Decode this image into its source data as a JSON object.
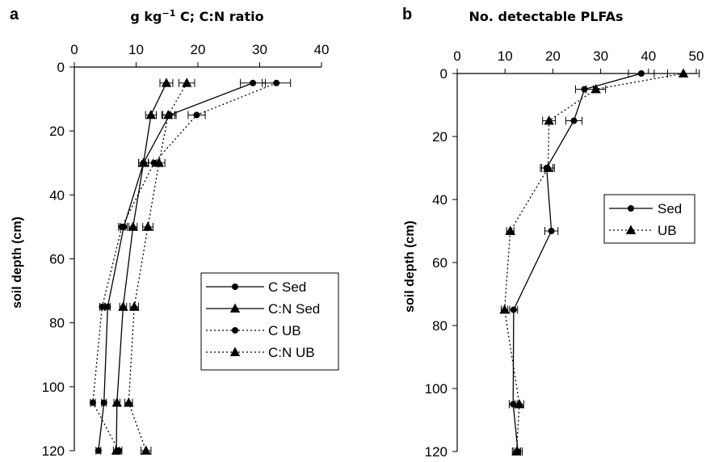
{
  "chart_data": [
    {
      "panel_label": "a",
      "type": "line",
      "orientation": "depth-profile",
      "title": "",
      "xlabel": "g kg⁻¹ C; C:N ratio",
      "ylabel": "soil depth (cm)",
      "xlim": [
        0,
        40
      ],
      "ylim": [
        0,
        120
      ],
      "y_inverted": true,
      "x_axis_position": "top",
      "x_ticks": [
        0,
        10,
        20,
        30,
        40
      ],
      "y_ticks": [
        0,
        20,
        40,
        60,
        80,
        100,
        120
      ],
      "grid": false,
      "legend_position": "lower-right",
      "series": [
        {
          "name": "C Sed",
          "marker": "circle",
          "line": "solid",
          "error_bars": true,
          "points": [
            {
              "x": 28.9,
              "y": 5
            },
            {
              "x": 15.4,
              "y": 15
            },
            {
              "x": 11.2,
              "y": 30
            },
            {
              "x": 8.0,
              "y": 50
            },
            {
              "x": 5.4,
              "y": 75
            },
            {
              "x": 4.8,
              "y": 105
            },
            {
              "x": 3.9,
              "y": 120
            }
          ]
        },
        {
          "name": "C:N Sed",
          "marker": "triangle",
          "line": "solid",
          "error_bars": true,
          "points": [
            {
              "x": 14.9,
              "y": 5
            },
            {
              "x": 12.4,
              "y": 15
            },
            {
              "x": 11.2,
              "y": 30
            },
            {
              "x": 9.5,
              "y": 50
            },
            {
              "x": 7.9,
              "y": 75
            },
            {
              "x": 6.9,
              "y": 105
            },
            {
              "x": 6.8,
              "y": 120
            }
          ]
        },
        {
          "name": "C UB",
          "marker": "circle",
          "line": "dotted",
          "error_bars": true,
          "points": [
            {
              "x": 32.7,
              "y": 5
            },
            {
              "x": 19.8,
              "y": 15
            },
            {
              "x": 12.9,
              "y": 30
            },
            {
              "x": 7.7,
              "y": 50
            },
            {
              "x": 4.5,
              "y": 75
            },
            {
              "x": 3.0,
              "y": 105
            },
            {
              "x": 7.2,
              "y": 120
            }
          ]
        },
        {
          "name": "C:N UB",
          "marker": "triangle",
          "line": "dotted",
          "error_bars": true,
          "points": [
            {
              "x": 18.2,
              "y": 5
            },
            {
              "x": 15.2,
              "y": 15
            },
            {
              "x": 13.7,
              "y": 30
            },
            {
              "x": 11.9,
              "y": 50
            },
            {
              "x": 9.7,
              "y": 75
            },
            {
              "x": 8.8,
              "y": 105
            },
            {
              "x": 11.6,
              "y": 120
            }
          ]
        }
      ]
    },
    {
      "panel_label": "b",
      "type": "line",
      "orientation": "depth-profile",
      "title": "",
      "xlabel": "No. detectable PLFAs",
      "ylabel": "soil depth (cm)",
      "xlim": [
        0,
        50
      ],
      "ylim": [
        0,
        120
      ],
      "y_inverted": true,
      "x_axis_position": "top",
      "x_ticks": [
        0,
        10,
        20,
        30,
        40,
        50
      ],
      "y_ticks": [
        0,
        20,
        40,
        60,
        80,
        100,
        120
      ],
      "grid": false,
      "legend_position": "center-right",
      "series": [
        {
          "name": "Sed",
          "marker": "circle",
          "line": "solid",
          "error_bars": true,
          "points": [
            {
              "x": 38.5,
              "y": 0
            },
            {
              "x": 26.6,
              "y": 5
            },
            {
              "x": 24.4,
              "y": 15
            },
            {
              "x": 18.7,
              "y": 30
            },
            {
              "x": 19.7,
              "y": 50
            },
            {
              "x": 11.8,
              "y": 75
            },
            {
              "x": 11.7,
              "y": 105
            },
            {
              "x": 12.7,
              "y": 120
            }
          ]
        },
        {
          "name": "UB",
          "marker": "triangle",
          "line": "dotted",
          "error_bars": true,
          "points": [
            {
              "x": 47.3,
              "y": 0
            },
            {
              "x": 29.0,
              "y": 5
            },
            {
              "x": 19.2,
              "y": 15
            },
            {
              "x": 19.0,
              "y": 30
            },
            {
              "x": 11.1,
              "y": 50
            },
            {
              "x": 9.9,
              "y": 75
            },
            {
              "x": 13.0,
              "y": 105
            },
            {
              "x": 12.4,
              "y": 120
            }
          ]
        }
      ]
    }
  ]
}
